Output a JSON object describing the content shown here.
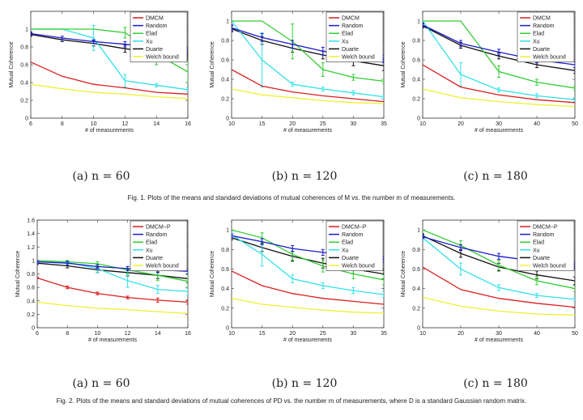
{
  "figure_1": {
    "caption": "Fig. 1.  Plots of the means and standard deviations of mutual coherences of M vs. the number m of measurements."
  },
  "figure_2": {
    "caption": "Fig. 2.  Plots of the means and standard deviations of mutual coherences of PD vs. the number m of measurements, where D is a standard Gaussian random matrix."
  },
  "colors": {
    "DMCM": "#d91e1e",
    "DMCM-P": "#d91e1e",
    "Random": "#1a1acc",
    "Elad": "#33cc33",
    "Xu": "#33e0e8",
    "Duarte": "#111111",
    "Welch bound": "#f0f033"
  },
  "chart_data": [
    {
      "type": "line",
      "subcaption": "(a) n = 60",
      "xlabel": "# of measurements",
      "ylabel": "Mutual Coherence",
      "xlim": [
        6,
        16
      ],
      "ylim": [
        0,
        1.2
      ],
      "xticks": [
        "6",
        "8",
        "10",
        "12",
        "14",
        "16"
      ],
      "yticks": [
        "0",
        "0.2",
        "0.4",
        "0.6",
        "0.8",
        "1"
      ],
      "x": [
        6,
        8,
        10,
        12,
        14,
        16
      ],
      "series": [
        {
          "name": "DMCM",
          "values": [
            0.63,
            0.47,
            0.38,
            0.34,
            0.29,
            0.27
          ],
          "err": [
            0,
            0,
            0,
            0,
            0,
            0
          ]
        },
        {
          "name": "Random",
          "values": [
            0.95,
            0.9,
            0.86,
            0.83,
            0.79,
            0.76
          ],
          "err": [
            0.02,
            0.02,
            0.02,
            0.03,
            0.03,
            0.03
          ]
        },
        {
          "name": "Elad",
          "values": [
            1.0,
            1.0,
            1.0,
            0.96,
            0.72,
            0.52
          ],
          "err": [
            0,
            0,
            0,
            0.06,
            0.12,
            0.12
          ]
        },
        {
          "name": "Xu",
          "values": [
            1.0,
            1.0,
            0.9,
            0.42,
            0.37,
            0.32
          ],
          "err": [
            0,
            0,
            0.14,
            0.07,
            0.02,
            0.02
          ]
        },
        {
          "name": "Duarte",
          "values": [
            0.94,
            0.88,
            0.84,
            0.78,
            0.74,
            0.7
          ],
          "err": [
            0.02,
            0.02,
            0.03,
            0.04,
            0.04,
            0.04
          ]
        },
        {
          "name": "Welch bound",
          "values": [
            0.38,
            0.33,
            0.29,
            0.27,
            0.24,
            0.22
          ],
          "err": [
            0,
            0,
            0,
            0,
            0,
            0
          ]
        }
      ],
      "legend": "top-right"
    },
    {
      "type": "line",
      "subcaption": "(b) n = 120",
      "xlabel": "# of measurements",
      "ylabel": "Mutual Coherence",
      "xlim": [
        10,
        35
      ],
      "ylim": [
        0,
        1.1
      ],
      "xticks": [
        "10",
        "15",
        "20",
        "25",
        "30",
        "35"
      ],
      "yticks": [
        "0",
        "0.2",
        "0.4",
        "0.6",
        "0.8",
        "1"
      ],
      "x": [
        10,
        15,
        20,
        25,
        30,
        35
      ],
      "series": [
        {
          "name": "DMCM",
          "values": [
            0.5,
            0.33,
            0.27,
            0.23,
            0.2,
            0.17
          ],
          "err": [
            0,
            0,
            0,
            0,
            0,
            0
          ]
        },
        {
          "name": "Random",
          "values": [
            0.93,
            0.83,
            0.76,
            0.69,
            0.64,
            0.61
          ],
          "err": [
            0.03,
            0.04,
            0.04,
            0.04,
            0.04,
            0.04
          ]
        },
        {
          "name": "Elad",
          "values": [
            1.0,
            1.0,
            0.79,
            0.5,
            0.42,
            0.38
          ],
          "err": [
            0,
            0,
            0.18,
            0.07,
            0.03,
            0.02
          ]
        },
        {
          "name": "Xu",
          "values": [
            1.0,
            0.6,
            0.35,
            0.3,
            0.26,
            0.22
          ],
          "err": [
            0,
            0.28,
            0.02,
            0.02,
            0.02,
            0.02
          ]
        },
        {
          "name": "Duarte",
          "values": [
            0.92,
            0.8,
            0.72,
            0.65,
            0.59,
            0.54
          ],
          "err": [
            0.03,
            0.04,
            0.04,
            0.04,
            0.05,
            0.05
          ]
        },
        {
          "name": "Welch bound",
          "values": [
            0.3,
            0.24,
            0.21,
            0.18,
            0.16,
            0.15
          ],
          "err": [
            0,
            0,
            0,
            0,
            0,
            0
          ]
        }
      ],
      "legend": "top-right"
    },
    {
      "type": "line",
      "subcaption": "(c) n = 180",
      "xlabel": "# of measurements",
      "ylabel": "Mutual Coherence",
      "xlim": [
        10,
        50
      ],
      "ylim": [
        0,
        1.1
      ],
      "xticks": [
        "10",
        "20",
        "30",
        "40",
        "50"
      ],
      "yticks": [
        "0",
        "0.2",
        "0.4",
        "0.6",
        "0.8",
        "1"
      ],
      "x": [
        10,
        20,
        30,
        40,
        50
      ],
      "series": [
        {
          "name": "DMCM",
          "values": [
            0.55,
            0.32,
            0.24,
            0.19,
            0.16
          ],
          "err": [
            0,
            0,
            0,
            0,
            0
          ]
        },
        {
          "name": "Random",
          "values": [
            0.96,
            0.77,
            0.68,
            0.6,
            0.55
          ],
          "err": [
            0.02,
            0.03,
            0.03,
            0.03,
            0.03
          ]
        },
        {
          "name": "Elad",
          "values": [
            1.0,
            1.0,
            0.48,
            0.37,
            0.31
          ],
          "err": [
            0,
            0,
            0.06,
            0.03,
            0.02
          ]
        },
        {
          "name": "Xu",
          "values": [
            1.0,
            0.45,
            0.29,
            0.23,
            0.19
          ],
          "err": [
            0,
            0.12,
            0.02,
            0.02,
            0.02
          ]
        },
        {
          "name": "Duarte",
          "values": [
            0.95,
            0.75,
            0.64,
            0.55,
            0.49
          ],
          "err": [
            0.02,
            0.03,
            0.03,
            0.03,
            0.03
          ]
        },
        {
          "name": "Welch bound",
          "values": [
            0.3,
            0.21,
            0.17,
            0.14,
            0.12
          ],
          "err": [
            0,
            0,
            0,
            0,
            0
          ]
        }
      ],
      "legend": "top-right"
    },
    {
      "type": "line",
      "subcaption": "(a) n = 60",
      "xlabel": "# of measurements",
      "ylabel": "Mutual Coherence",
      "xlim": [
        6,
        16
      ],
      "ylim": [
        0,
        1.6
      ],
      "xticks": [
        "6",
        "8",
        "10",
        "12",
        "14",
        "16"
      ],
      "yticks": [
        "0",
        "0.2",
        "0.4",
        "0.6",
        "0.8",
        "1",
        "1.2",
        "1.4",
        "1.6"
      ],
      "x": [
        6,
        8,
        10,
        12,
        14,
        16
      ],
      "series": [
        {
          "name": "DMCM−P",
          "values": [
            0.74,
            0.6,
            0.51,
            0.45,
            0.41,
            0.38
          ],
          "err": [
            0.01,
            0.02,
            0.02,
            0.02,
            0.03,
            0.03
          ]
        },
        {
          "name": "Random",
          "values": [
            0.98,
            0.96,
            0.91,
            0.88,
            0.86,
            0.84
          ],
          "err": [
            0.02,
            0.03,
            0.03,
            0.03,
            0.04,
            0.04
          ]
        },
        {
          "name": "Elad",
          "values": [
            1.0,
            0.98,
            0.95,
            0.86,
            0.78,
            0.69
          ],
          "err": [
            0,
            0.02,
            0.03,
            0.05,
            0.08,
            0.1
          ]
        },
        {
          "name": "Xu",
          "values": [
            0.98,
            0.97,
            0.88,
            0.7,
            0.57,
            0.54
          ],
          "err": [
            0.02,
            0.02,
            0.06,
            0.1,
            0.06,
            0.06
          ]
        },
        {
          "name": "Duarte",
          "values": [
            0.96,
            0.92,
            0.86,
            0.82,
            0.78,
            0.73
          ],
          "err": [
            0.02,
            0.03,
            0.04,
            0.05,
            0.05,
            0.06
          ]
        },
        {
          "name": "Welch bound",
          "values": [
            0.38,
            0.33,
            0.29,
            0.27,
            0.24,
            0.21
          ],
          "err": [
            0,
            0,
            0,
            0,
            0,
            0
          ]
        }
      ],
      "legend": "top-right"
    },
    {
      "type": "line",
      "subcaption": "(b) n = 120",
      "xlabel": "# of measurements",
      "ylabel": "Mutual Coherence",
      "xlim": [
        10,
        35
      ],
      "ylim": [
        0,
        1.1
      ],
      "xticks": [
        "10",
        "15",
        "20",
        "25",
        "30",
        "35"
      ],
      "yticks": [
        "0",
        "0.2",
        "0.4",
        "0.6",
        "0.8",
        "1"
      ],
      "x": [
        10,
        15,
        20,
        25,
        30,
        35
      ],
      "series": [
        {
          "name": "DMCM−P",
          "values": [
            0.58,
            0.43,
            0.35,
            0.3,
            0.27,
            0.24
          ],
          "err": [
            0,
            0,
            0,
            0,
            0,
            0
          ]
        },
        {
          "name": "Random",
          "values": [
            0.94,
            0.88,
            0.81,
            0.77,
            0.73,
            0.7
          ],
          "err": [
            0.02,
            0.03,
            0.03,
            0.03,
            0.03,
            0.03
          ]
        },
        {
          "name": "Elad",
          "values": [
            1.0,
            0.92,
            0.75,
            0.63,
            0.55,
            0.49
          ],
          "err": [
            0,
            0.05,
            0.06,
            0.06,
            0.05,
            0.05
          ]
        },
        {
          "name": "Xu",
          "values": [
            0.95,
            0.75,
            0.5,
            0.43,
            0.38,
            0.34
          ],
          "err": [
            0.03,
            0.12,
            0.04,
            0.03,
            0.03,
            0.03
          ]
        },
        {
          "name": "Duarte",
          "values": [
            0.92,
            0.82,
            0.73,
            0.66,
            0.6,
            0.55
          ],
          "err": [
            0.02,
            0.04,
            0.05,
            0.05,
            0.05,
            0.05
          ]
        },
        {
          "name": "Welch bound",
          "values": [
            0.3,
            0.24,
            0.21,
            0.18,
            0.16,
            0.15
          ],
          "err": [
            0,
            0,
            0,
            0,
            0,
            0
          ]
        }
      ],
      "legend": "top-right"
    },
    {
      "type": "line",
      "subcaption": "(c) n = 180",
      "xlabel": "# of measurements",
      "ylabel": "Mutual Coherence",
      "xlim": [
        10,
        50
      ],
      "ylim": [
        0,
        1.1
      ],
      "xticks": [
        "10",
        "20",
        "30",
        "40",
        "50"
      ],
      "yticks": [
        "0",
        "0.2",
        "0.4",
        "0.6",
        "0.8",
        "1"
      ],
      "x": [
        10,
        20,
        30,
        40,
        50
      ],
      "series": [
        {
          "name": "DMCM−P",
          "values": [
            0.62,
            0.39,
            0.3,
            0.25,
            0.21
          ],
          "err": [
            0,
            0,
            0,
            0,
            0
          ]
        },
        {
          "name": "Random",
          "values": [
            0.93,
            0.82,
            0.73,
            0.68,
            0.64
          ],
          "err": [
            0.02,
            0.03,
            0.03,
            0.03,
            0.03
          ]
        },
        {
          "name": "Elad",
          "values": [
            1.0,
            0.84,
            0.64,
            0.48,
            0.4
          ],
          "err": [
            0,
            0.05,
            0.05,
            0.04,
            0.03
          ]
        },
        {
          "name": "Xu",
          "values": [
            0.92,
            0.6,
            0.41,
            0.33,
            0.29
          ],
          "err": [
            0.03,
            0.06,
            0.03,
            0.02,
            0.02
          ]
        },
        {
          "name": "Duarte",
          "values": [
            0.94,
            0.76,
            0.62,
            0.54,
            0.48
          ],
          "err": [
            0.02,
            0.04,
            0.04,
            0.04,
            0.04
          ]
        },
        {
          "name": "Welch bound",
          "values": [
            0.31,
            0.22,
            0.17,
            0.14,
            0.13
          ],
          "err": [
            0,
            0,
            0,
            0,
            0
          ]
        }
      ],
      "legend": "top-right"
    }
  ]
}
